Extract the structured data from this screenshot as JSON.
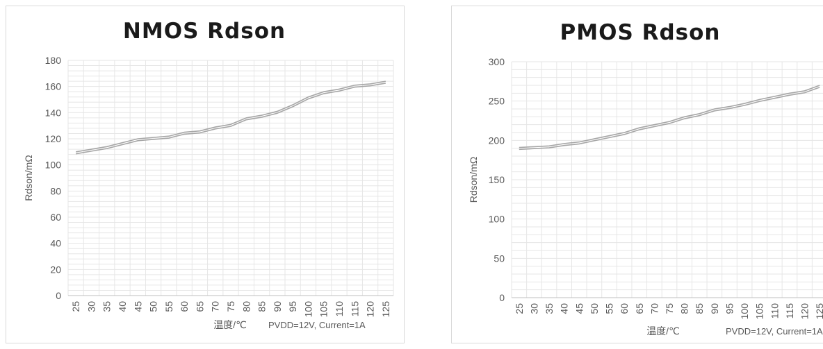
{
  "chart_data": [
    {
      "type": "line",
      "title": "NMOS Rdson",
      "xlabel": "温度/℃",
      "ylabel": "Rdson/mΩ",
      "annotation": "PVDD=12V, Current=1A",
      "ylim": [
        0,
        180
      ],
      "yticks": [
        0,
        20,
        40,
        60,
        80,
        100,
        120,
        140,
        160,
        180
      ],
      "grid": true,
      "categories": [
        "25",
        "30",
        "35",
        "40",
        "45",
        "50",
        "55",
        "60",
        "65",
        "70",
        "75",
        "80",
        "85",
        "90",
        "95",
        "100",
        "105",
        "110",
        "115",
        "120",
        "125"
      ],
      "series": [
        {
          "values": [
            110,
            112,
            114,
            117,
            120,
            121,
            122,
            125,
            126,
            129,
            131,
            136,
            138,
            141,
            146,
            152,
            156,
            158,
            161,
            162,
            164
          ]
        },
        {
          "values": [
            108.5,
            110.5,
            112.5,
            115.5,
            118.5,
            119.5,
            120.5,
            123.5,
            124.5,
            127.5,
            129.5,
            134.5,
            136.5,
            139.5,
            144.5,
            150.5,
            154.5,
            156.5,
            159.5,
            160.5,
            162.5
          ]
        }
      ],
      "line_color": "#a6a6a6"
    },
    {
      "type": "line",
      "title": "PMOS Rdson",
      "xlabel": "温度/℃",
      "ylabel": "Rdson/mΩ",
      "annotation": "PVDD=12V, Current=1A",
      "ylim": [
        0,
        300
      ],
      "yticks": [
        0,
        50,
        100,
        150,
        200,
        250,
        300
      ],
      "grid": true,
      "categories": [
        "25",
        "30",
        "35",
        "40",
        "45",
        "50",
        "55",
        "60",
        "65",
        "70",
        "75",
        "80",
        "85",
        "90",
        "95",
        "100",
        "105",
        "110",
        "115",
        "120",
        "125"
      ],
      "series": [
        {
          "values": [
            191,
            192,
            193,
            196,
            198,
            202,
            206,
            210,
            216,
            220,
            224,
            230,
            234,
            240,
            243,
            247,
            252,
            256,
            260,
            263,
            270
          ]
        },
        {
          "values": [
            188.5,
            189.5,
            190.5,
            193.5,
            195.5,
            199.5,
            203.5,
            207.5,
            213.5,
            217.5,
            221.5,
            227.5,
            231.5,
            237.5,
            240.5,
            244.5,
            249.5,
            253.5,
            257.5,
            260.5,
            267.5
          ]
        }
      ],
      "line_color": "#a6a6a6"
    }
  ]
}
